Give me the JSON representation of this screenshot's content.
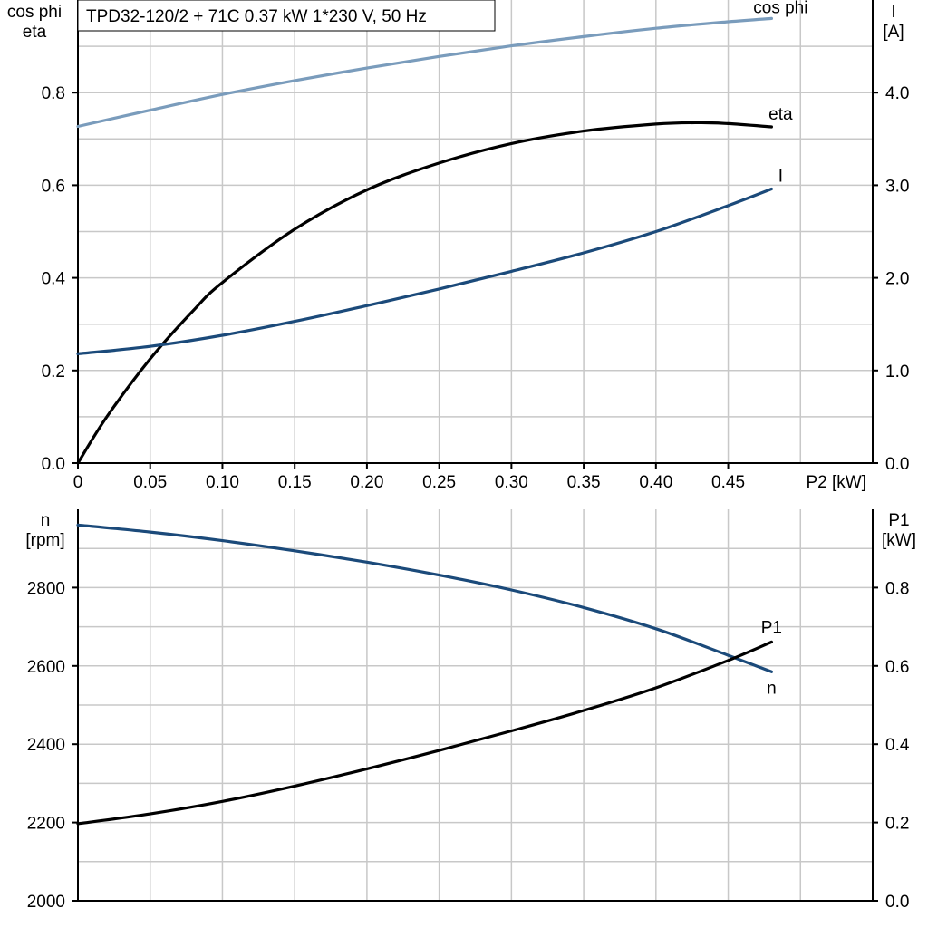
{
  "chart_data": [
    {
      "type": "line",
      "title": "TPD32-120/2 + 71C   0.37 kW   1*230 V, 50 Hz",
      "xlabel": "P2 [kW]",
      "ylabel_left": [
        "cos phi",
        "eta"
      ],
      "ylabel_right": [
        "I",
        "[A]"
      ],
      "xlim": [
        0,
        0.55
      ],
      "ylim_left": [
        0,
        1.0
      ],
      "ylim_right": [
        0,
        5.0
      ],
      "x_ticks": [
        "0",
        "0.05",
        "0.10",
        "0.15",
        "0.20",
        "0.25",
        "0.30",
        "0.35",
        "0.40",
        "0.45"
      ],
      "x_tick_values": [
        0,
        0.05,
        0.1,
        0.15,
        0.2,
        0.25,
        0.3,
        0.35,
        0.4,
        0.45
      ],
      "y_left_ticks": [
        "0.0",
        "0.2",
        "0.4",
        "0.6",
        "0.8"
      ],
      "y_left_tick_values": [
        0,
        0.2,
        0.4,
        0.6,
        0.8
      ],
      "y_right_ticks": [
        "0.0",
        "1.0",
        "2.0",
        "3.0",
        "4.0"
      ],
      "y_right_tick_values": [
        0,
        1.0,
        2.0,
        3.0,
        4.0
      ],
      "grid": true,
      "series": [
        {
          "name": "cos phi",
          "axis": "left",
          "color": "#7a9cbc",
          "x": [
            0,
            0.05,
            0.1,
            0.15,
            0.2,
            0.25,
            0.3,
            0.35,
            0.4,
            0.45,
            0.48
          ],
          "y": [
            0.727,
            0.762,
            0.796,
            0.826,
            0.853,
            0.878,
            0.901,
            0.921,
            0.939,
            0.953,
            0.96
          ]
        },
        {
          "name": "eta",
          "axis": "left",
          "color": "#000000",
          "x": [
            0,
            0.02,
            0.05,
            0.08,
            0.1,
            0.15,
            0.2,
            0.25,
            0.3,
            0.35,
            0.4,
            0.43,
            0.45,
            0.48
          ],
          "y": [
            0,
            0.1,
            0.225,
            0.33,
            0.39,
            0.505,
            0.59,
            0.648,
            0.69,
            0.717,
            0.732,
            0.735,
            0.733,
            0.726
          ]
        },
        {
          "name": "I",
          "axis": "right",
          "color": "#1b4a7a",
          "x": [
            0,
            0.05,
            0.1,
            0.15,
            0.2,
            0.25,
            0.3,
            0.35,
            0.4,
            0.45,
            0.48
          ],
          "y": [
            1.18,
            1.26,
            1.38,
            1.53,
            1.7,
            1.88,
            2.07,
            2.27,
            2.5,
            2.78,
            2.96
          ]
        }
      ]
    },
    {
      "type": "line",
      "xlabel": "",
      "ylabel_left": [
        "n",
        "[rpm]"
      ],
      "ylabel_right": [
        "P1",
        "[kW]"
      ],
      "xlim": [
        0,
        0.55
      ],
      "ylim_left": [
        2000,
        3000
      ],
      "ylim_right": [
        0,
        1.0
      ],
      "y_left_ticks": [
        "2000",
        "2200",
        "2400",
        "2600",
        "2800"
      ],
      "y_left_tick_values": [
        2000,
        2200,
        2400,
        2600,
        2800
      ],
      "y_right_ticks": [
        "0.0",
        "0.2",
        "0.4",
        "0.6",
        "0.8"
      ],
      "y_right_tick_values": [
        0,
        0.2,
        0.4,
        0.6,
        0.8
      ],
      "grid": true,
      "series": [
        {
          "name": "n",
          "axis": "left",
          "color": "#1b4a7a",
          "x": [
            0,
            0.05,
            0.1,
            0.15,
            0.2,
            0.25,
            0.3,
            0.35,
            0.4,
            0.45,
            0.48
          ],
          "y": [
            2960,
            2942,
            2920,
            2894,
            2865,
            2832,
            2794,
            2749,
            2695,
            2627,
            2585
          ]
        },
        {
          "name": "P1",
          "axis": "right",
          "color": "#000000",
          "x": [
            0,
            0.05,
            0.1,
            0.15,
            0.2,
            0.25,
            0.3,
            0.35,
            0.4,
            0.45,
            0.48
          ],
          "y": [
            0.197,
            0.222,
            0.254,
            0.293,
            0.337,
            0.384,
            0.434,
            0.486,
            0.544,
            0.614,
            0.661
          ]
        }
      ]
    }
  ]
}
